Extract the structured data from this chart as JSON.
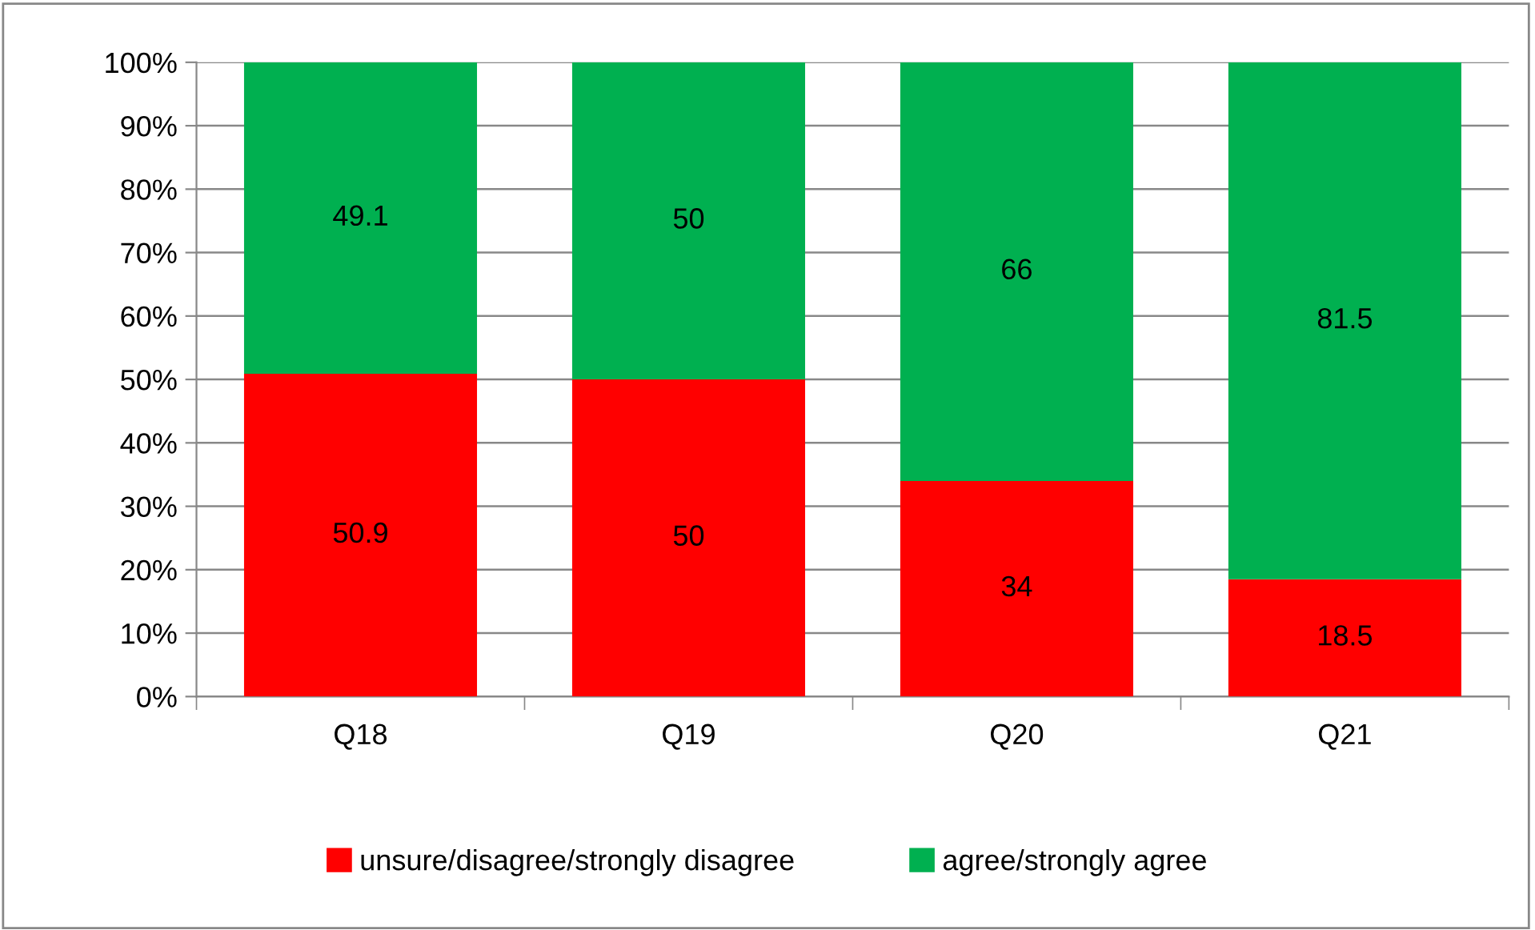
{
  "chart_data": {
    "type": "bar",
    "stacked": true,
    "categories": [
      "Q18",
      "Q19",
      "Q20",
      "Q21"
    ],
    "series": [
      {
        "name": "unsure/disagree/strongly disagree",
        "color": "#ff0000",
        "values": [
          50.9,
          50,
          34,
          18.5
        ]
      },
      {
        "name": "agree/strongly agree",
        "color": "#00b050",
        "values": [
          49.1,
          50,
          66,
          81.5
        ]
      }
    ],
    "ylim": [
      0,
      100
    ],
    "yticks": [
      {
        "value": 0,
        "label": "0%"
      },
      {
        "value": 10,
        "label": "10%"
      },
      {
        "value": 20,
        "label": "20%"
      },
      {
        "value": 30,
        "label": "30%"
      },
      {
        "value": 40,
        "label": "40%"
      },
      {
        "value": 50,
        "label": "50%"
      },
      {
        "value": 60,
        "label": "60%"
      },
      {
        "value": 70,
        "label": "70%"
      },
      {
        "value": 80,
        "label": "80%"
      },
      {
        "value": 90,
        "label": "90%"
      },
      {
        "value": 100,
        "label": "100%"
      }
    ],
    "grid": "y",
    "legend": "bottom",
    "data_labels": true
  }
}
